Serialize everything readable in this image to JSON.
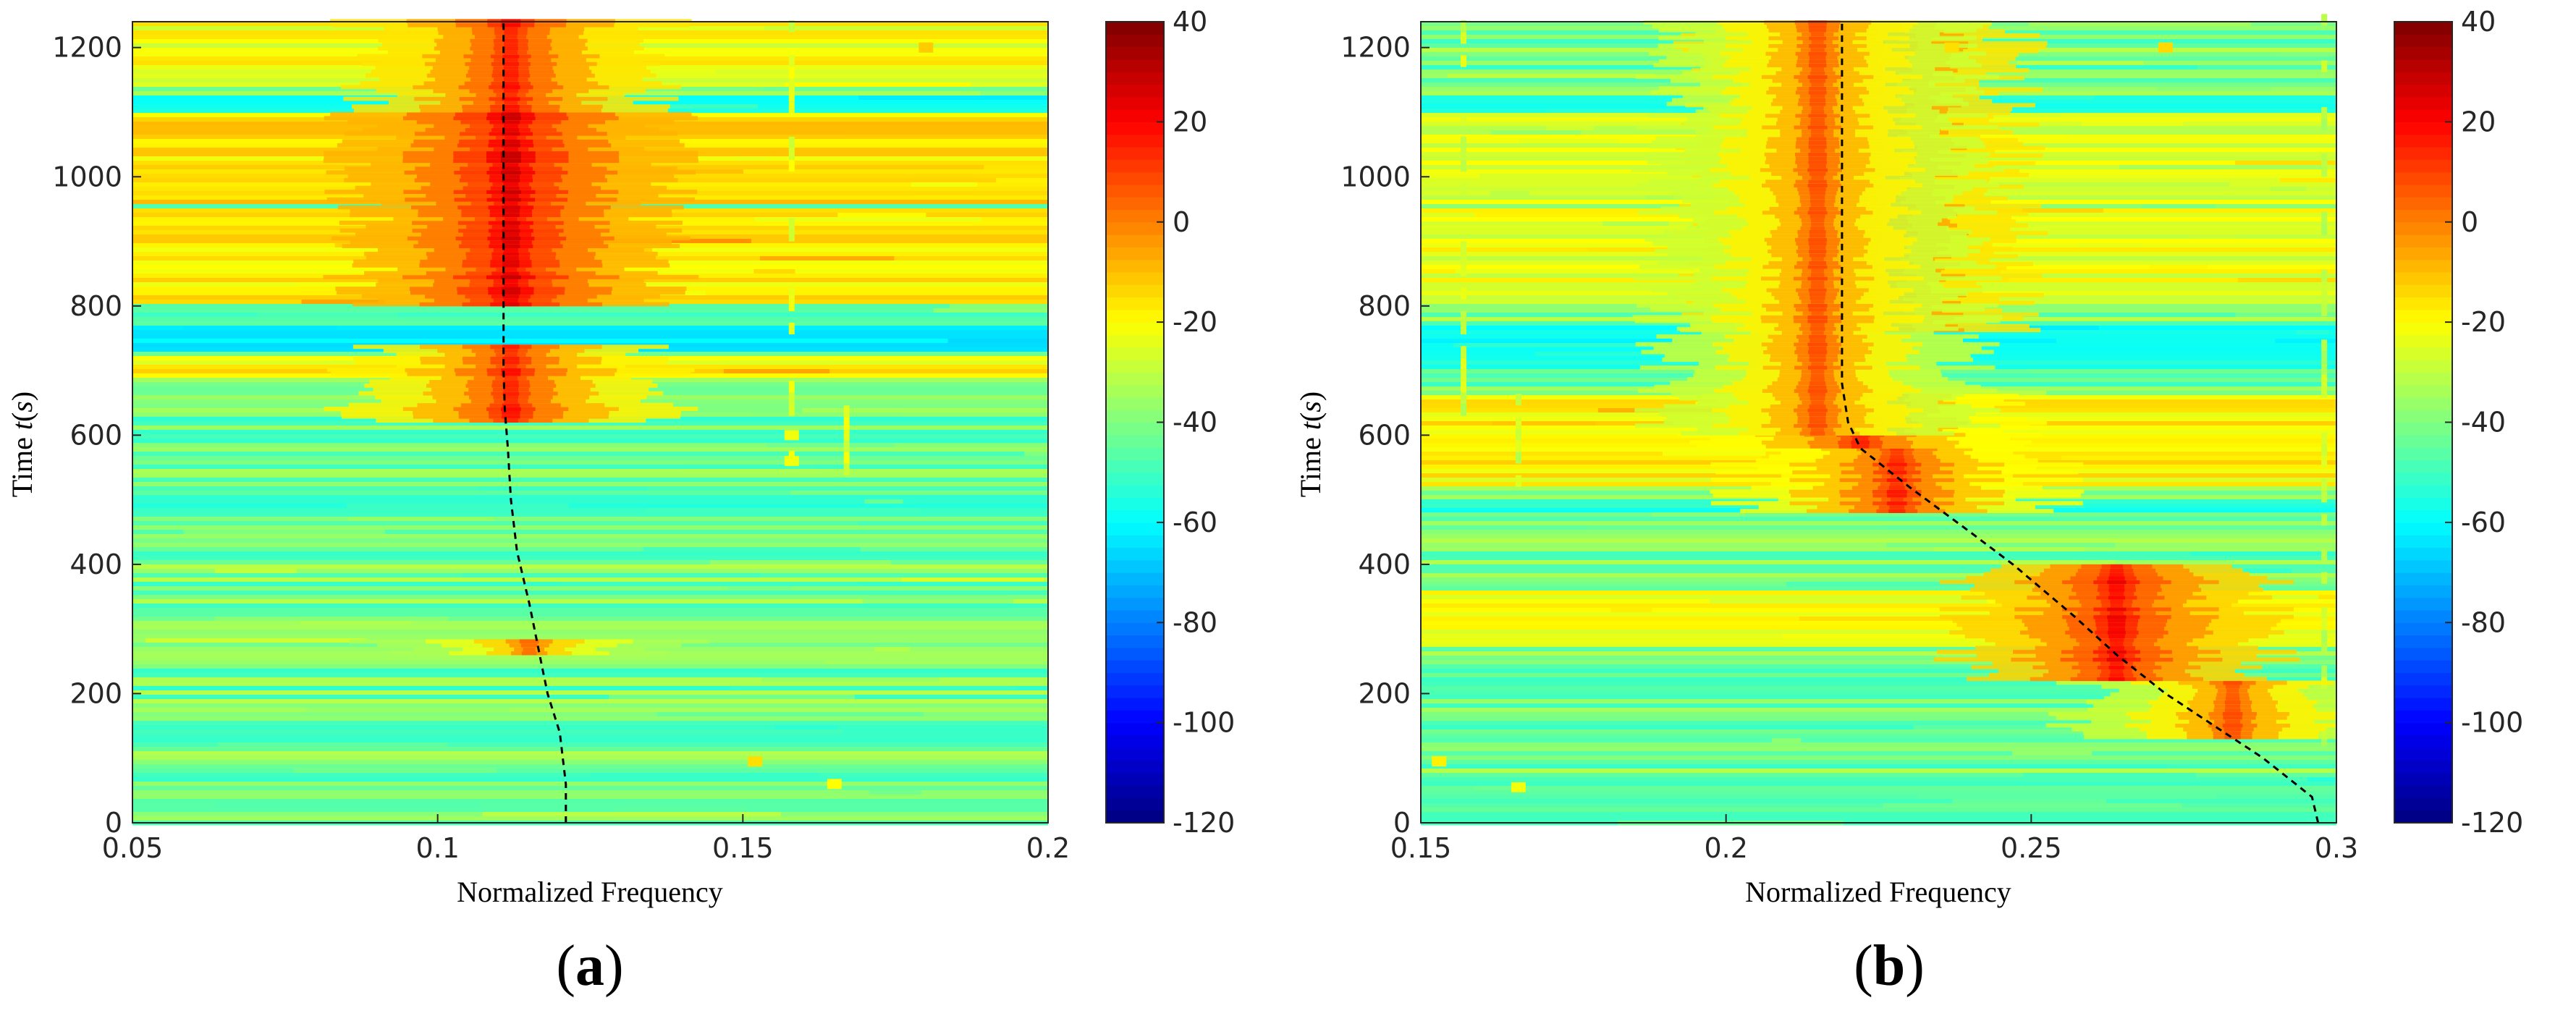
{
  "panels": [
    {
      "label": "(a)",
      "label_letter": "a"
    },
    {
      "label": "(b)",
      "label_letter": "b"
    }
  ],
  "chart_data": [
    {
      "type": "heatmap",
      "title": "",
      "xlabel": "Normalized Frequency",
      "ylabel_prefix": "Time ",
      "ylabel_var": "t",
      "ylabel_suffix_open": "(",
      "ylabel_unit": "s",
      "ylabel_suffix_close": ")",
      "xlim": [
        0.05,
        0.2
      ],
      "ylim": [
        0,
        1240
      ],
      "xticks": [
        0.05,
        0.1,
        0.15,
        0.2
      ],
      "xtick_labels": [
        "0.05",
        "0.1",
        "0.15",
        "0.2"
      ],
      "yticks": [
        0,
        200,
        400,
        600,
        800,
        1000,
        1200
      ],
      "ytick_labels": [
        "0",
        "200",
        "400",
        "600",
        "800",
        "1000",
        "1200"
      ],
      "colorbar": {
        "colormap": "jet",
        "range": [
          -120,
          40
        ],
        "ticks": [
          40,
          20,
          0,
          -20,
          -40,
          -60,
          -80,
          -100,
          -120
        ],
        "tick_labels": [
          "40",
          "20",
          "0",
          "-20",
          "-40",
          "-60",
          "-80",
          "-100",
          "-120"
        ]
      },
      "baseline_level": -42,
      "dashed_ridge": {
        "t": [
          0,
          60,
          140,
          200,
          270,
          340,
          420,
          500,
          580,
          640,
          700,
          760,
          900,
          1000,
          1100,
          1200,
          1240
        ],
        "f": [
          0.121,
          0.121,
          0.12,
          0.118,
          0.1165,
          0.115,
          0.113,
          0.112,
          0.1115,
          0.111,
          0.1108,
          0.1108,
          0.1108,
          0.1108,
          0.1108,
          0.1108,
          0.1108
        ]
      },
      "ridge_energy": [
        {
          "t0": 620,
          "t1": 740,
          "f": 0.112,
          "peak": 20
        },
        {
          "t0": 800,
          "t1": 950,
          "f": 0.112,
          "peak": 30
        },
        {
          "t0": 950,
          "t1": 1100,
          "f": 0.112,
          "peak": 30
        },
        {
          "t0": 1100,
          "t1": 1240,
          "f": 0.112,
          "peak": 22
        },
        {
          "t0": 260,
          "t1": 280,
          "f": 0.115,
          "peak": 5
        }
      ],
      "hot_bands": [
        {
          "t0": 690,
          "t1": 720,
          "peak": -12
        },
        {
          "t0": 800,
          "t1": 950,
          "peak": -10
        },
        {
          "t0": 960,
          "t1": 1100,
          "peak": -8
        },
        {
          "t0": 1140,
          "t1": 1240,
          "peak": -15
        }
      ],
      "cool_bands": [
        {
          "t0": 1100,
          "t1": 1125,
          "level": -58
        },
        {
          "t0": 730,
          "t1": 770,
          "level": -62
        },
        {
          "t0": 480,
          "t1": 500,
          "level": -55
        },
        {
          "t0": 120,
          "t1": 160,
          "level": -52
        }
      ],
      "spots": [
        {
          "t": 95,
          "f": 0.152,
          "level": -15
        },
        {
          "t": 60,
          "f": 0.165,
          "level": -20
        },
        {
          "t": 560,
          "f": 0.158,
          "level": -22
        },
        {
          "t": 600,
          "f": 0.158,
          "level": -22
        },
        {
          "t": 1200,
          "f": 0.18,
          "level": -12
        }
      ],
      "vertical_streaks": [
        {
          "f": 0.158,
          "t0": 540,
          "t1": 1240,
          "level": -25
        },
        {
          "f": 0.167,
          "t0": 520,
          "t1": 660,
          "level": -25
        }
      ]
    },
    {
      "type": "heatmap",
      "title": "",
      "xlabel": "Normalized Frequency",
      "ylabel_prefix": "Time ",
      "ylabel_var": "t",
      "ylabel_suffix_open": "(",
      "ylabel_unit": "s",
      "ylabel_suffix_close": ")",
      "xlim": [
        0.15,
        0.3
      ],
      "ylim": [
        0,
        1240
      ],
      "xticks": [
        0.15,
        0.2,
        0.25,
        0.3
      ],
      "xtick_labels": [
        "0.15",
        "0.2",
        "0.25",
        "0.3"
      ],
      "yticks": [
        0,
        200,
        400,
        600,
        800,
        1000,
        1200
      ],
      "ytick_labels": [
        "0",
        "200",
        "400",
        "600",
        "800",
        "1000",
        "1200"
      ],
      "colorbar": {
        "colormap": "jet",
        "range": [
          -120,
          40
        ],
        "ticks": [
          40,
          20,
          0,
          -20,
          -40,
          -60,
          -80,
          -100,
          -120
        ],
        "tick_labels": [
          "40",
          "20",
          "0",
          "-20",
          "-40",
          "-60",
          "-80",
          "-100",
          "-120"
        ]
      },
      "baseline_level": -42,
      "dashed_ridge": {
        "t": [
          0,
          40,
          100,
          150,
          200,
          260,
          320,
          400,
          450,
          520,
          580,
          620,
          680,
          760,
          900,
          1100,
          1240
        ],
        "f": [
          0.297,
          0.296,
          0.288,
          0.28,
          0.272,
          0.264,
          0.257,
          0.247,
          0.24,
          0.23,
          0.222,
          0.22,
          0.219,
          0.219,
          0.219,
          0.219,
          0.219
        ]
      },
      "ridge_energy": [
        {
          "t0": 130,
          "t1": 220,
          "f": 0.283,
          "peak": 10
        },
        {
          "t0": 220,
          "t1": 400,
          "f": 0.264,
          "peak": 25
        },
        {
          "t0": 480,
          "t1": 580,
          "f": 0.228,
          "peak": 18
        },
        {
          "t0": 580,
          "t1": 660,
          "f": 0.222,
          "peak": 18
        },
        {
          "t0": 760,
          "t1": 1240,
          "f": 0.222,
          "peak": 22
        },
        {
          "t0": 600,
          "t1": 1240,
          "f": 0.215,
          "peak": 10
        }
      ],
      "hot_bands": [
        {
          "t0": 270,
          "t1": 360,
          "peak": -14
        },
        {
          "t0": 520,
          "t1": 660,
          "peak": -12
        },
        {
          "t0": 800,
          "t1": 950,
          "peak": -16
        },
        {
          "t0": 960,
          "t1": 1100,
          "peak": -18
        }
      ],
      "cool_bands": [
        {
          "t0": 1100,
          "t1": 1125,
          "level": -58
        },
        {
          "t0": 700,
          "t1": 770,
          "level": -58
        },
        {
          "t0": 480,
          "t1": 500,
          "level": -55
        },
        {
          "t0": 0,
          "t1": 80,
          "level": -48
        }
      ],
      "spots": [
        {
          "t": 95,
          "f": 0.153,
          "level": -18
        },
        {
          "t": 55,
          "f": 0.166,
          "level": -22
        },
        {
          "t": 1200,
          "f": 0.272,
          "level": -14
        },
        {
          "t": 1200,
          "f": 0.237,
          "level": -15
        }
      ],
      "vertical_streaks": [
        {
          "f": 0.157,
          "t0": 540,
          "t1": 1240,
          "level": -28
        },
        {
          "f": 0.166,
          "t0": 520,
          "t1": 660,
          "level": -28
        },
        {
          "f": 0.298,
          "t0": 100,
          "t1": 1240,
          "level": -30
        }
      ]
    }
  ]
}
